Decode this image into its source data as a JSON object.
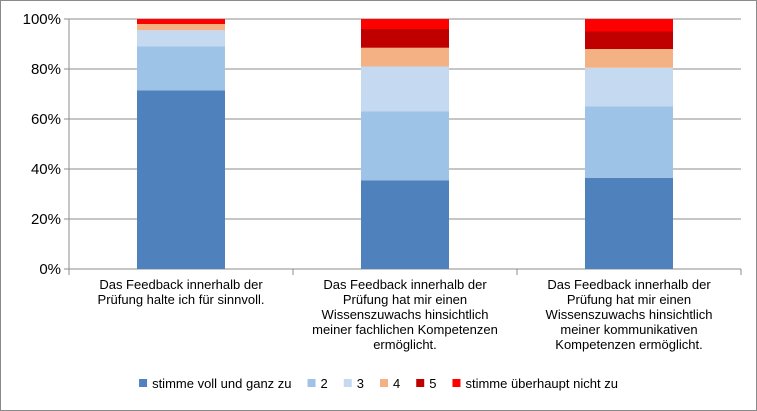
{
  "chart_data": {
    "type": "bar",
    "stacked": true,
    "percent": true,
    "ylim": [
      0,
      100
    ],
    "yticks": [
      "0%",
      "20%",
      "40%",
      "60%",
      "80%",
      "100%"
    ],
    "grid": true,
    "legend_position": "bottom",
    "categories": [
      [
        "Das Feedback innerhalb der",
        "Prüfung halte ich für sinnvoll."
      ],
      [
        "Das Feedback innerhalb der",
        "Prüfung hat mir einen",
        "Wissenszuwachs hinsichtlich",
        "meiner fachlichen Kompetenzen",
        "ermöglicht."
      ],
      [
        "Das Feedback innerhalb der",
        "Prüfung hat mir einen",
        "Wissenszuwachs hinsichtlich",
        "meiner kommunikativen",
        "Kompetenzen ermöglicht."
      ]
    ],
    "series": [
      {
        "name": "stimme voll und ganz zu",
        "color": "#4f81bd",
        "values": [
          71.5,
          35.5,
          36.5
        ]
      },
      {
        "name": "2",
        "color": "#9dc3e6",
        "values": [
          17.5,
          27.5,
          28.5
        ]
      },
      {
        "name": "3",
        "color": "#c5d9f1",
        "values": [
          6.5,
          18.0,
          15.5
        ]
      },
      {
        "name": "4",
        "color": "#f4b183",
        "values": [
          2.5,
          7.5,
          7.5
        ]
      },
      {
        "name": "5",
        "color": "#c00000",
        "values": [
          0.0,
          7.5,
          7.0
        ]
      },
      {
        "name": "stimme überhaupt nicht zu",
        "color": "#ff0000",
        "values": [
          2.0,
          4.0,
          5.0
        ]
      }
    ]
  }
}
